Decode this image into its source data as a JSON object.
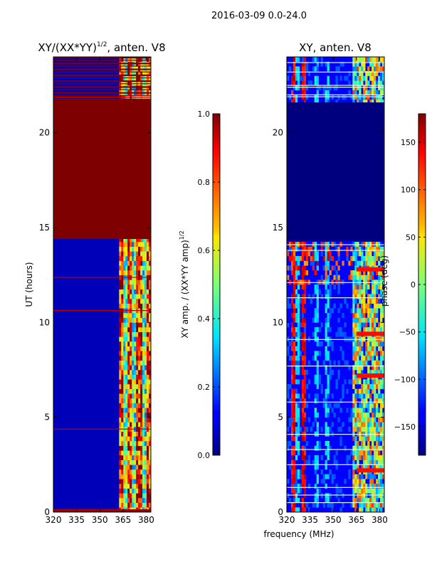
{
  "figure": {
    "suptitle": "2016-03-09 0.0-24.0",
    "xlabel": "frequency (MHz)"
  },
  "chart_data": [
    {
      "type": "heatmap",
      "title_prefix": "XY/(XX*YY)",
      "title_exponent": "1/2",
      "title_suffix": ", anten. V8",
      "xlabel": "",
      "ylabel": "UT (hours)",
      "xlim": [
        320,
        383
      ],
      "ylim": [
        0,
        24
      ],
      "xticks": [
        320,
        335,
        350,
        365,
        380
      ],
      "yticks": [
        0,
        5,
        10,
        15,
        20
      ],
      "saturated_block_hours": [
        14.4,
        21.8
      ],
      "colorbar": {
        "label_prefix": "XY amp. / (XX*YY amp)",
        "label_exponent": "1/2",
        "range": [
          0.0,
          1.0
        ],
        "ticks": [
          "0.0",
          "0.2",
          "0.4",
          "0.6",
          "0.8",
          "1.0"
        ]
      }
    },
    {
      "type": "heatmap",
      "title": "XY, anten. V8",
      "xlabel": "frequency (MHz)",
      "ylabel": "",
      "xlim": [
        320,
        383
      ],
      "ylim": [
        0,
        24
      ],
      "xticks": [
        320,
        335,
        350,
        365,
        380
      ],
      "yticks": [
        0,
        5,
        10,
        15,
        20
      ],
      "flat_block_hours": [
        14.3,
        21.6
      ],
      "colorbar": {
        "label": "phase (deg)",
        "range": [
          -180,
          180
        ],
        "ticks": [
          "−150",
          "−100",
          "−50",
          "0",
          "50",
          "100",
          "150"
        ]
      }
    }
  ],
  "colors": {
    "dark_blue": "#00007f",
    "dark_red": "#7f0000"
  }
}
